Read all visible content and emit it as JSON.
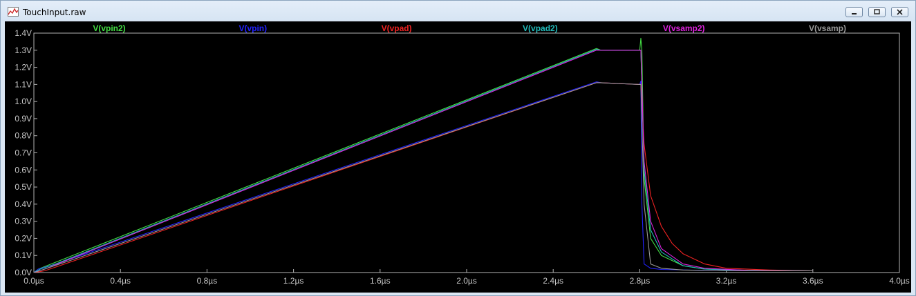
{
  "window": {
    "title": "TouchInput.raw",
    "icon": "waveform-chart-icon"
  },
  "colors": {
    "background": "#000000",
    "axis": "#b4b4b4",
    "tick_label": "#c8c8c8"
  },
  "chart_data": {
    "type": "line",
    "xlabel": "",
    "ylabel": "",
    "xlim": [
      0,
      4.0
    ],
    "ylim": [
      0,
      1.4
    ],
    "x_ticks": [
      "0.0µs",
      "0.4µs",
      "0.8µs",
      "1.2µs",
      "1.6µs",
      "2.0µs",
      "2.4µs",
      "2.8µs",
      "3.2µs",
      "3.6µs",
      "4.0µs"
    ],
    "y_ticks": [
      "0.0V",
      "0.1V",
      "0.2V",
      "0.3V",
      "0.4V",
      "0.5V",
      "0.6V",
      "0.7V",
      "0.8V",
      "0.9V",
      "1.0V",
      "1.1V",
      "1.2V",
      "1.3V",
      "1.4V"
    ],
    "grid": false,
    "legend_position": "top",
    "series": [
      {
        "name": "V(vpin2)",
        "color": "#44dd44",
        "x": [
          0,
          0.02,
          0.1,
          2.6,
          2.62,
          2.8,
          2.805,
          2.81,
          2.82,
          2.85,
          2.9,
          3.0,
          3.1,
          3.3,
          3.6
        ],
        "y": [
          0,
          0.02,
          0.06,
          1.31,
          1.3,
          1.3,
          1.37,
          1.3,
          0.55,
          0.2,
          0.1,
          0.04,
          0.02,
          0.013,
          0.01
        ]
      },
      {
        "name": "V(vpin)",
        "color": "#2222ff",
        "x": [
          0,
          0.02,
          0.1,
          2.6,
          2.62,
          2.8,
          2.805,
          2.81,
          2.82,
          2.85,
          2.9,
          3.1,
          3.3,
          3.6
        ],
        "y": [
          0,
          0.02,
          0.05,
          1.115,
          1.11,
          1.1,
          1.12,
          0.4,
          0.05,
          0.025,
          0.018,
          0.013,
          0.011,
          0.01
        ]
      },
      {
        "name": "V(vpad)",
        "color": "#ee2222",
        "x": [
          0,
          0.05,
          2.6,
          2.62,
          2.8,
          2.805,
          2.82,
          2.85,
          2.9,
          2.95,
          3.0,
          3.1,
          3.2,
          3.4,
          3.6
        ],
        "y": [
          0,
          0.01,
          1.11,
          1.11,
          1.1,
          1.1,
          0.75,
          0.45,
          0.27,
          0.17,
          0.11,
          0.05,
          0.025,
          0.015,
          0.01
        ]
      },
      {
        "name": "V(vpad2)",
        "color": "#22bbbb",
        "x": [
          0,
          0.03,
          0.1,
          2.6,
          2.62,
          2.8,
          2.805,
          2.82,
          2.85,
          2.9,
          3.0,
          3.1,
          3.3,
          3.6
        ],
        "y": [
          0,
          0.02,
          0.05,
          1.305,
          1.3,
          1.3,
          1.3,
          0.6,
          0.25,
          0.12,
          0.04,
          0.02,
          0.013,
          0.01
        ]
      },
      {
        "name": "V(vsamp2)",
        "color": "#dd22dd",
        "x": [
          0,
          0.05,
          2.6,
          2.62,
          2.8,
          2.805,
          2.82,
          2.85,
          2.9,
          3.0,
          3.1,
          3.3,
          3.6
        ],
        "y": [
          0,
          0.02,
          1.3,
          1.3,
          1.3,
          1.3,
          0.65,
          0.3,
          0.14,
          0.05,
          0.025,
          0.013,
          0.01
        ]
      },
      {
        "name": "V(vsamp)",
        "color": "#999999",
        "x": [
          0,
          0.05,
          2.6,
          2.62,
          2.8,
          2.805,
          2.82,
          2.85,
          2.9,
          3.0,
          3.1,
          3.3,
          3.6
        ],
        "y": [
          0,
          0.02,
          1.11,
          1.11,
          1.1,
          1.1,
          0.4,
          0.05,
          0.025,
          0.015,
          0.012,
          0.011,
          0.01
        ]
      }
    ]
  }
}
